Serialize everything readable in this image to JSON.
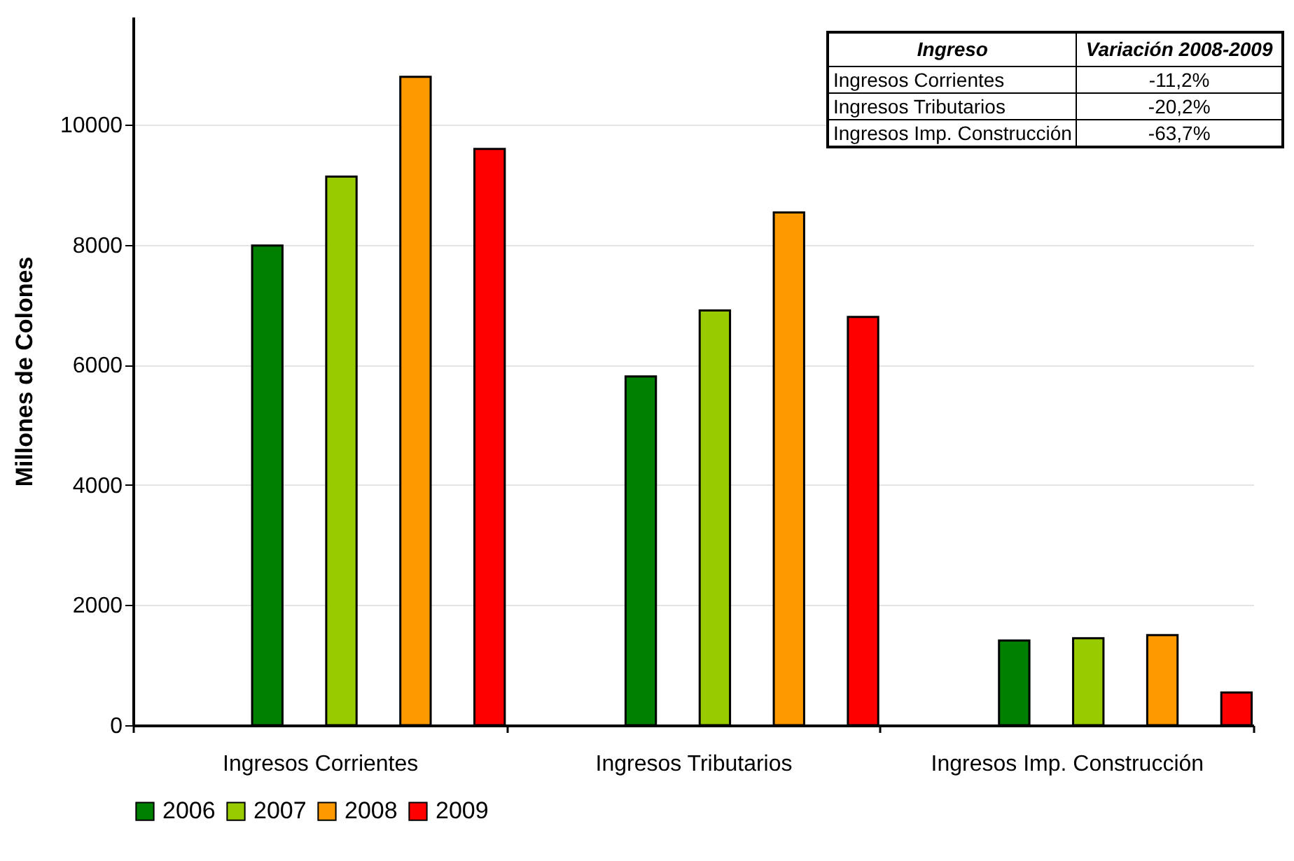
{
  "chart_data": {
    "type": "bar",
    "ylabel": "Millones de Colones",
    "categories": [
      "Ingresos Corrientes",
      "Ingresos Tributarios",
      "Ingresos Imp. Construcción"
    ],
    "series": [
      {
        "name": "2006",
        "color": "#008000",
        "values": [
          7990,
          5810,
          1410
        ]
      },
      {
        "name": "2007",
        "color": "#99cc00",
        "values": [
          9140,
          6910,
          1450
        ]
      },
      {
        "name": "2008",
        "color": "#ff9900",
        "values": [
          10800,
          8540,
          1500
        ]
      },
      {
        "name": "2009",
        "color": "#ff0000",
        "values": [
          9600,
          6800,
          545
        ]
      }
    ],
    "ylim": [
      0,
      11800
    ],
    "yticks": [
      0,
      2000,
      4000,
      6000,
      8000,
      10000
    ],
    "grid": "y",
    "legend": "bottom",
    "annotations": [
      "Ingreso",
      "Variación 2008-2009",
      "Ingresos Corrientes",
      "-11,2%",
      "Ingresos Tributarios",
      "-20,2%",
      "Ingresos Imp. Construcción",
      "-63,7%"
    ]
  }
}
